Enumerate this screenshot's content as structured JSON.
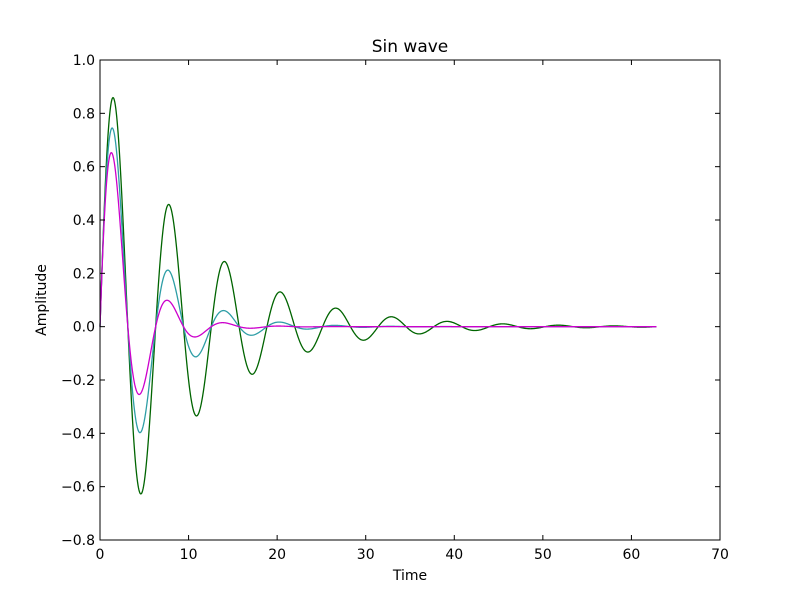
{
  "chart_data": {
    "type": "line",
    "title": "Sin wave",
    "xlabel": "Time",
    "ylabel": "Amplitude",
    "xlim": [
      0,
      70
    ],
    "ylim": [
      -0.8,
      1.0
    ],
    "xticks": [
      0,
      10,
      20,
      30,
      40,
      50,
      60,
      70
    ],
    "yticks": [
      -0.8,
      -0.6,
      -0.4,
      -0.2,
      0.0,
      0.2,
      0.4,
      0.6,
      0.8,
      1.0
    ],
    "xtick_labels": [
      "0",
      "10",
      "20",
      "30",
      "40",
      "50",
      "60",
      "70"
    ],
    "ytick_labels": [
      "−0.8",
      "−0.6",
      "−0.4",
      "−0.2",
      "0.0",
      "0.2",
      "0.4",
      "0.6",
      "0.8",
      "1.0"
    ],
    "grid": false,
    "x_range": [
      0,
      62.83
    ],
    "series": [
      {
        "color": "#006400",
        "function": "exp(-0.1*t)*sin(t)",
        "points": [
          [
            1.3,
            0.86
          ],
          [
            4.5,
            -0.63
          ],
          [
            7.6,
            0.46
          ],
          [
            10.8,
            -0.34
          ],
          [
            14.0,
            0.24
          ],
          [
            17.1,
            -0.18
          ],
          [
            20.4,
            0.13
          ],
          [
            23.5,
            -0.095
          ],
          [
            26.7,
            0.068
          ],
          [
            29.9,
            -0.05
          ],
          [
            33.0,
            0.036
          ],
          [
            36.2,
            -0.026
          ],
          [
            39.3,
            0.019
          ],
          [
            42.5,
            -0.014
          ],
          [
            45.6,
            0.01
          ]
        ]
      },
      {
        "color": "#2e9ea6",
        "function": "exp(-0.2*t)*sin(t)",
        "points": [
          [
            1.3,
            0.75
          ],
          [
            4.5,
            -0.4
          ],
          [
            7.6,
            0.21
          ],
          [
            10.8,
            -0.115
          ],
          [
            14.0,
            0.06
          ],
          [
            17.1,
            -0.032
          ],
          [
            20.4,
            0.017
          ],
          [
            23.5,
            -0.009
          ]
        ]
      },
      {
        "color": "#cc00cc",
        "function": "exp(-0.3*t)*sin(t)",
        "points": [
          [
            1.3,
            0.65
          ],
          [
            4.5,
            -0.25
          ],
          [
            7.6,
            0.098
          ],
          [
            10.8,
            -0.038
          ],
          [
            14.0,
            0.015
          ],
          [
            17.1,
            -0.006
          ]
        ]
      }
    ]
  }
}
